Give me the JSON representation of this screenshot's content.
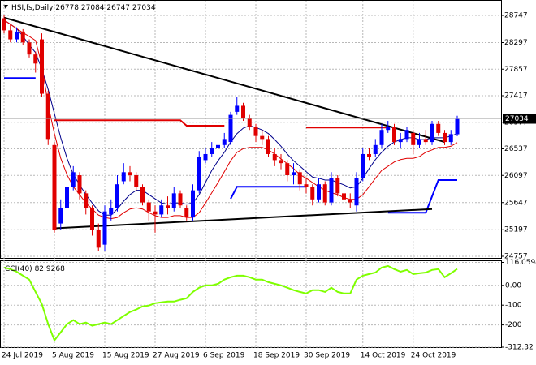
{
  "chart_data": [
    {
      "type": "candlestick",
      "title": "HSI,fs,Daily",
      "categories": [
        "24 Jul 2019",
        null,
        null,
        null,
        null,
        null,
        null,
        null,
        "5 Aug 2019",
        null,
        null,
        null,
        null,
        null,
        null,
        null,
        "15 Aug 2019",
        null,
        null,
        null,
        null,
        null,
        null,
        null,
        "27 Aug 2019",
        null,
        null,
        null,
        null,
        null,
        null,
        null,
        "6 Sep 2019",
        null,
        null,
        null,
        null,
        null,
        null,
        null,
        "18 Sep 2019",
        null,
        null,
        null,
        null,
        null,
        null,
        null,
        "30 Sep 2019",
        null,
        null,
        null,
        null,
        null,
        null,
        null,
        null,
        "14 Oct 2019",
        null,
        null,
        null,
        null,
        null,
        null,
        null,
        "24 Oct 2019",
        null,
        null,
        null,
        null,
        null,
        null,
        null
      ],
      "open": [
        28700,
        28500,
        28350,
        28480,
        28300,
        28100,
        28350,
        27450,
        26600,
        25300,
        25550,
        25900,
        26100,
        25800,
        25550,
        25200,
        24950,
        25450,
        25550,
        26000,
        26150,
        26100,
        25900,
        25650,
        25500,
        25450,
        25600,
        25550,
        25800,
        25550,
        25400,
        25850,
        26350,
        26450,
        26550,
        26600,
        26650,
        27150,
        27250,
        27050,
        26900,
        26750,
        26700,
        26450,
        26350,
        26300,
        26100,
        26150,
        25950,
        25900,
        25700,
        25950,
        25650,
        26050,
        25800,
        25700,
        25600,
        26050,
        26450,
        26450,
        26600,
        26850,
        26900,
        26650,
        26700,
        26800,
        26600,
        26700,
        26650,
        26950,
        26800,
        26650,
        26778
      ],
      "high": [
        28750,
        28600,
        28550,
        28520,
        28350,
        28150,
        28450,
        27500,
        26650,
        25700,
        26000,
        26250,
        26150,
        25850,
        25600,
        25300,
        25600,
        25700,
        26100,
        26300,
        26250,
        26150,
        25950,
        25700,
        25600,
        25700,
        25750,
        25900,
        25850,
        25600,
        25950,
        26500,
        26550,
        26650,
        26700,
        26800,
        27150,
        27400,
        27300,
        27100,
        26950,
        26850,
        26750,
        26550,
        26450,
        26350,
        26300,
        26200,
        26050,
        25950,
        26050,
        26000,
        26150,
        26100,
        25850,
        25800,
        26150,
        26550,
        26550,
        26700,
        26950,
        27000,
        26950,
        26800,
        26900,
        26850,
        26800,
        26850,
        27000,
        27000,
        26850,
        26850,
        27084
      ],
      "low": [
        28450,
        28300,
        28300,
        28250,
        28050,
        27800,
        27400,
        26600,
        25150,
        25200,
        25500,
        25850,
        25700,
        25450,
        25100,
        24850,
        24850,
        25350,
        25500,
        25950,
        26000,
        25850,
        25600,
        25350,
        25150,
        25400,
        25450,
        25500,
        25550,
        25350,
        25350,
        25800,
        26300,
        26400,
        26450,
        26550,
        26600,
        27100,
        27000,
        26850,
        26650,
        26600,
        26400,
        26250,
        26200,
        26000,
        25950,
        25850,
        25800,
        25600,
        25650,
        25600,
        25600,
        25750,
        25600,
        25550,
        25500,
        26000,
        26350,
        26400,
        26550,
        26800,
        26600,
        26550,
        26650,
        26450,
        26550,
        26600,
        26600,
        26750,
        26600,
        26600,
        26747
      ],
      "close": [
        28500,
        28350,
        28480,
        28300,
        28100,
        27950,
        27450,
        26700,
        25200,
        25550,
        25900,
        26150,
        25800,
        25550,
        25200,
        24900,
        25500,
        25550,
        25950,
        26150,
        26100,
        25900,
        25650,
        25500,
        25450,
        25600,
        25550,
        25800,
        25600,
        25400,
        25850,
        26400,
        26450,
        26550,
        26600,
        26700,
        27100,
        27250,
        27050,
        26900,
        26750,
        26700,
        26450,
        26350,
        26300,
        26100,
        26150,
        25950,
        25900,
        25700,
        25950,
        25650,
        26050,
        25800,
        25700,
        25650,
        26050,
        26450,
        26400,
        26600,
        26850,
        26900,
        26650,
        26700,
        26850,
        26600,
        26700,
        26650,
        26950,
        26800,
        26650,
        26780,
        27034
      ],
      "up_color": "#0000ff",
      "down_color": "#e00000",
      "series": [
        {
          "color": "#00008b",
          "width": 1,
          "values": [
            28670,
            28600,
            28530,
            28400,
            28260,
            28130,
            27860,
            27520,
            27120,
            26720,
            26380,
            26110,
            25940,
            25780,
            25640,
            25510,
            25440,
            25440,
            25540,
            25670,
            25780,
            25850,
            25850,
            25780,
            25710,
            25640,
            25620,
            25640,
            25640,
            25620,
            25640,
            25780,
            25980,
            26180,
            26340,
            26480,
            26650,
            26790,
            26880,
            26920,
            26890,
            26850,
            26790,
            26690,
            26580,
            26450,
            26340,
            26250,
            26160,
            26070,
            26050,
            26020,
            26020,
            25980,
            25940,
            25890,
            25910,
            26050,
            26210,
            26360,
            26480,
            26580,
            26650,
            26690,
            26720,
            26720,
            26690,
            26690,
            26720,
            26720,
            26720,
            26750,
            26790
          ]
        },
        {
          "color": "#e00000",
          "width": 1,
          "values": [
            28670,
            28600,
            28530,
            28460,
            28400,
            28330,
            27930,
            27260,
            26790,
            26380,
            26110,
            25910,
            25780,
            25640,
            25540,
            25440,
            25400,
            25380,
            25400,
            25480,
            25540,
            25560,
            25540,
            25480,
            25430,
            25400,
            25400,
            25430,
            25430,
            25400,
            25400,
            25480,
            25640,
            25810,
            25980,
            26160,
            26340,
            26480,
            26540,
            26560,
            26560,
            26560,
            26520,
            26450,
            26370,
            26290,
            26210,
            26110,
            26050,
            25980,
            25910,
            25850,
            25810,
            25780,
            25730,
            25700,
            25700,
            25780,
            25910,
            26050,
            26180,
            26250,
            26320,
            26360,
            26380,
            26380,
            26410,
            26480,
            26520,
            26560,
            26560,
            26580,
            26640
          ]
        },
        {
          "color": "#0000ff",
          "width": 2,
          "values": [
            27710,
            27710,
            27710,
            27710,
            27710,
            27710,
            null,
            null,
            null,
            null,
            null,
            null,
            null,
            null,
            null,
            null,
            null,
            null,
            null,
            null,
            null,
            null,
            null,
            null,
            null,
            null,
            null,
            null,
            null,
            null,
            null,
            null,
            null,
            null,
            null,
            null,
            25710,
            25910,
            25910,
            25910,
            25910,
            25910,
            25910,
            25910,
            25910,
            25910,
            25910,
            25910,
            25910,
            null,
            null,
            null,
            null,
            null,
            null,
            null,
            null,
            null,
            null,
            null,
            null,
            25480,
            25480,
            25480,
            25480,
            25480,
            25480,
            25480,
            25750,
            26020,
            26020,
            26020,
            26020
          ]
        },
        {
          "color": "#e00000",
          "width": 2,
          "values": [
            null,
            null,
            null,
            null,
            null,
            null,
            null,
            null,
            27010,
            27010,
            27010,
            27010,
            27010,
            27010,
            27010,
            27010,
            27010,
            27010,
            27010,
            27010,
            27010,
            27010,
            27010,
            27010,
            27010,
            27010,
            27010,
            27010,
            27010,
            26920,
            26920,
            26920,
            26920,
            26920,
            26920,
            26920,
            null,
            null,
            null,
            null,
            null,
            null,
            null,
            null,
            null,
            null,
            null,
            null,
            26890,
            26890,
            26890,
            26890,
            26890,
            26890,
            26890,
            26890,
            26890,
            26890,
            26890,
            26890,
            26890,
            26890,
            null,
            null,
            null,
            null,
            null,
            null,
            null,
            null,
            null,
            null,
            null
          ]
        }
      ],
      "trendlines": [
        {
          "color": "#000000",
          "x": [
            0,
            70
          ],
          "values": [
            28710,
            26650
          ]
        },
        {
          "color": "#000000",
          "x": [
            8,
            68
          ],
          "values": [
            25220,
            25540
          ]
        }
      ],
      "ylim": [
        24757,
        28962
      ],
      "yticks": [
        28747,
        28297,
        27857,
        27417,
        26977,
        26537,
        26097,
        25647,
        25197,
        24757
      ],
      "grid": true
    },
    {
      "type": "line",
      "title": "CCI(40)",
      "color": "#7fff00",
      "values": [
        90,
        82,
        69,
        49,
        29,
        -33,
        -94,
        -196,
        -278,
        -237,
        -196,
        -176,
        -196,
        -188,
        -204,
        -196,
        -188,
        -196,
        -176,
        -155,
        -135,
        -122,
        -106,
        -102,
        -90,
        -86,
        -82,
        -82,
        -73,
        -65,
        -33,
        -12,
        0,
        0,
        8,
        29,
        41,
        49,
        49,
        41,
        29,
        29,
        16,
        8,
        0,
        -12,
        -24,
        -33,
        -41,
        -24,
        -24,
        -33,
        -12,
        -33,
        -41,
        -41,
        29,
        49,
        57,
        65,
        90,
        98,
        82,
        69,
        78,
        57,
        61,
        65,
        78,
        82,
        41,
        61,
        82.9268
      ],
      "ylim": [
        -312.32,
        116.0594
      ],
      "yticks": [
        116.0594,
        {
          "value": 0,
          "label": "0.00"
        },
        -100,
        -200,
        -312.32
      ],
      "grid": true
    }
  ]
}
